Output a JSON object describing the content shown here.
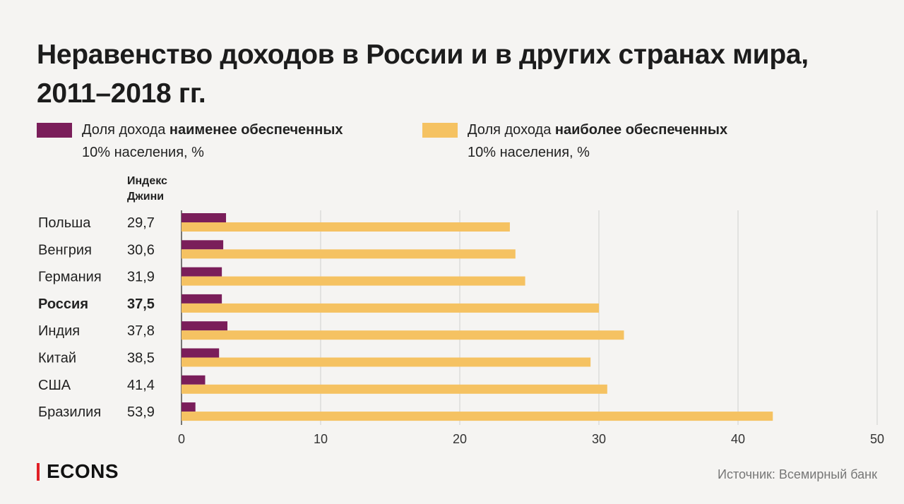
{
  "header": {
    "title_line1": "Неравенство доходов в России и в других странах мира,",
    "title_line2": "2011–2018 гг."
  },
  "legend": {
    "poor": {
      "prefix": "Доля дохода ",
      "bold": "наименее обеспеченных",
      "line2": "10% населения, %",
      "color": "#7a1e5a"
    },
    "rich": {
      "prefix": "Доля дохода ",
      "bold": "наиболее обеспеченных",
      "line2": "10% населения, %",
      "color": "#f5c262"
    }
  },
  "gini_header": {
    "line1": "Индекс",
    "line2": "Джини"
  },
  "chart_data": {
    "type": "bar",
    "orientation": "horizontal",
    "categories": [
      "Польша",
      "Венгрия",
      "Германия",
      "Россия",
      "Индия",
      "Китай",
      "США",
      "Бразилия"
    ],
    "highlighted_category": "Россия",
    "gini": [
      "29,7",
      "30,6",
      "31,9",
      "37,5",
      "37,8",
      "38,5",
      "41,4",
      "53,9"
    ],
    "series": [
      {
        "name": "Доля дохода наименее обеспеченных 10% населения, %",
        "values": [
          3.2,
          3.0,
          2.9,
          2.9,
          3.3,
          2.7,
          1.7,
          1.0
        ],
        "color": "#7a1e5a"
      },
      {
        "name": "Доля дохода наиболее обеспеченных 10% населения, %",
        "values": [
          23.6,
          24.0,
          24.7,
          30.0,
          31.8,
          29.4,
          30.6,
          42.5
        ],
        "color": "#f5c262"
      }
    ],
    "xlim": [
      0,
      50
    ],
    "xticks": [
      0,
      10,
      20,
      30,
      40,
      50
    ],
    "grid": true,
    "legend_position": "top"
  },
  "footer": {
    "brand": "ECONS",
    "source": "Источник: Всемирный банк"
  }
}
